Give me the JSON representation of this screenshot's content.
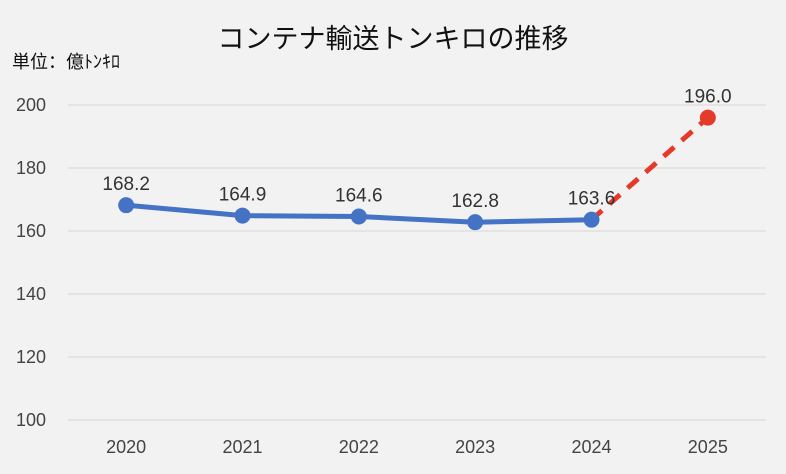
{
  "chart_data": {
    "type": "line",
    "title": "コンテナ輸送トンキロの推移",
    "unit_label": "単位：億ﾄﾝｷﾛ",
    "categories": [
      "2020",
      "2021",
      "2022",
      "2023",
      "2024",
      "2025"
    ],
    "series": [
      {
        "values": [
          168.2,
          164.9,
          164.6,
          162.8,
          163.6,
          null
        ],
        "style": "solid",
        "color": "#4472c4"
      },
      {
        "values": [
          null,
          null,
          null,
          null,
          163.6,
          196.0
        ],
        "style": "dashed",
        "color": "#e53a2a"
      }
    ],
    "data_labels": [
      "168.2",
      "164.9",
      "164.6",
      "162.8",
      "163.6",
      "196.0"
    ],
    "y_ticks": [
      "100",
      "120",
      "140",
      "160",
      "180",
      "200"
    ],
    "ylim": [
      100,
      200
    ],
    "grid": true,
    "legend": "none"
  }
}
